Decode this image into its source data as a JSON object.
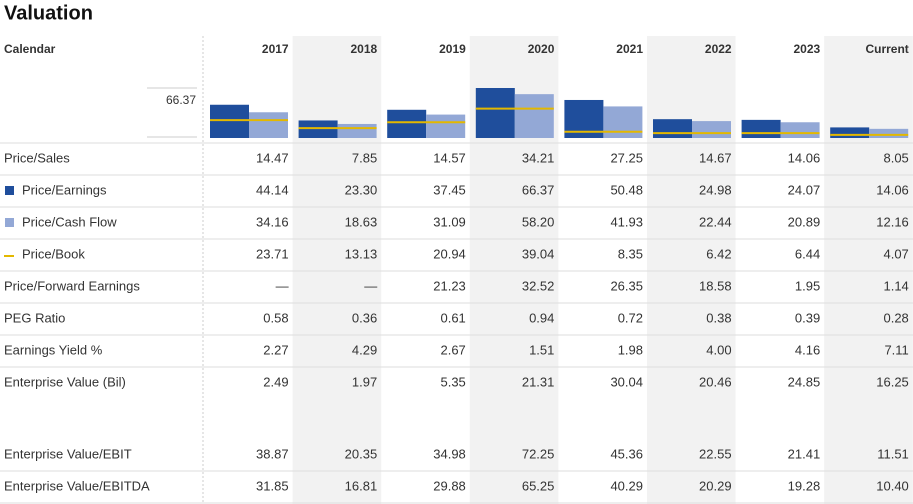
{
  "title": "Valuation",
  "header": {
    "label": "Calendar",
    "columns": [
      "2017",
      "2018",
      "2019",
      "2020",
      "2021",
      "2022",
      "2023",
      "Current"
    ]
  },
  "scale_label": "66.37",
  "rows": [
    {
      "label": "Price/Sales",
      "cells": [
        "14.47",
        "7.85",
        "14.57",
        "34.21",
        "27.25",
        "14.67",
        "14.06",
        "8.05"
      ]
    },
    {
      "label": "Price/Earnings",
      "cells": [
        "44.14",
        "23.30",
        "37.45",
        "66.37",
        "50.48",
        "24.98",
        "24.07",
        "14.06"
      ]
    },
    {
      "label": "Price/Cash Flow",
      "cells": [
        "34.16",
        "18.63",
        "31.09",
        "58.20",
        "41.93",
        "22.44",
        "20.89",
        "12.16"
      ]
    },
    {
      "label": "Price/Book",
      "cells": [
        "23.71",
        "13.13",
        "20.94",
        "39.04",
        "8.35",
        "6.42",
        "6.44",
        "4.07"
      ]
    },
    {
      "label": "Price/Forward Earnings",
      "cells": [
        "—",
        "—",
        "21.23",
        "32.52",
        "26.35",
        "18.58",
        "1.95",
        "1.14"
      ]
    },
    {
      "label": "PEG Ratio",
      "cells": [
        "0.58",
        "0.36",
        "0.61",
        "0.94",
        "0.72",
        "0.38",
        "0.39",
        "0.28"
      ]
    },
    {
      "label": "Earnings Yield %",
      "cells": [
        "2.27",
        "4.29",
        "2.67",
        "1.51",
        "1.98",
        "4.00",
        "4.16",
        "7.11"
      ]
    },
    {
      "label": "Enterprise Value (Bil)",
      "cells": [
        "2.49",
        "1.97",
        "5.35",
        "21.31",
        "30.04",
        "20.46",
        "24.85",
        "16.25"
      ]
    },
    {
      "label": "Enterprise Value/EBIT",
      "cells": [
        "38.87",
        "20.35",
        "34.98",
        "72.25",
        "45.36",
        "22.55",
        "21.41",
        "11.51"
      ]
    },
    {
      "label": "Enterprise Value/EBITDA",
      "cells": [
        "31.85",
        "16.81",
        "29.88",
        "65.25",
        "40.29",
        "20.29",
        "19.28",
        "10.40"
      ]
    }
  ]
}
